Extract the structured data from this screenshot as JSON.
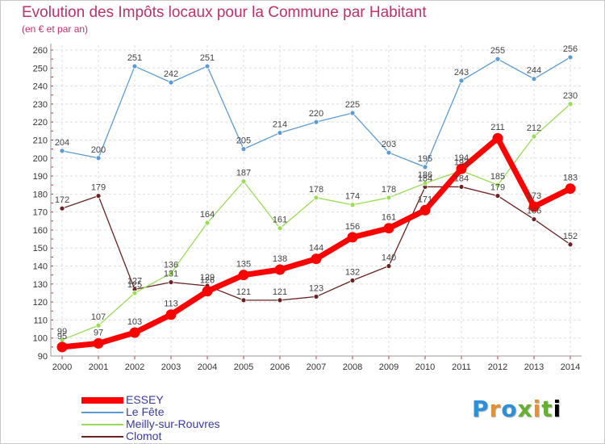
{
  "chart_data": {
    "type": "line",
    "title": "Evolution des Impôts locaux pour la Commune par Habitant",
    "subtitle": "(en € et par an)",
    "x": [
      "2000",
      "2001",
      "2002",
      "2003",
      "2004",
      "2005",
      "2006",
      "2007",
      "2008",
      "2009",
      "2010",
      "2011",
      "2012",
      "2013",
      "2014"
    ],
    "ylim": [
      90,
      260
    ],
    "yticks": [
      90,
      100,
      110,
      120,
      130,
      140,
      150,
      160,
      170,
      180,
      190,
      200,
      210,
      220,
      230,
      240,
      250,
      260
    ],
    "grid": true,
    "legend_position": "bottom-left",
    "series": [
      {
        "name": "ESSEY",
        "color": "#ff0000",
        "values": [
          95,
          97,
          103,
          113,
          126,
          135,
          138,
          144,
          156,
          161,
          171,
          194,
          211,
          173,
          183
        ]
      },
      {
        "name": "Le Fête",
        "color": "#5b9bd5",
        "values": [
          204,
          200,
          251,
          242,
          251,
          205,
          214,
          220,
          225,
          203,
          195,
          243,
          255,
          244,
          256
        ]
      },
      {
        "name": "Meilly-sur-Rouvres",
        "color": "#99dd55",
        "values": [
          99,
          107,
          125,
          136,
          164,
          187,
          161,
          178,
          174,
          178,
          186,
          193,
          185,
          212,
          230
        ]
      },
      {
        "name": "Clomot",
        "color": "#6b2222",
        "values": [
          172,
          179,
          127,
          131,
          129,
          121,
          121,
          123,
          132,
          140,
          184,
          184,
          179,
          166,
          152
        ]
      }
    ]
  },
  "logo": {
    "text": "Proxiti",
    "letters": [
      "P",
      "r",
      "o",
      "x",
      "i",
      "t",
      "i"
    ]
  }
}
